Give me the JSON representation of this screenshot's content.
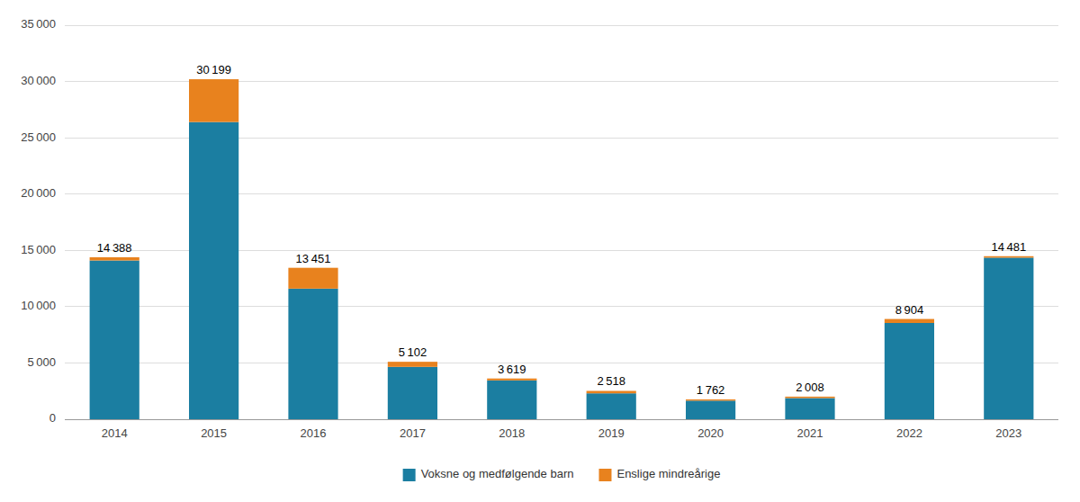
{
  "chart_data": {
    "type": "bar",
    "stacked": true,
    "categories": [
      "2014",
      "2015",
      "2016",
      "2017",
      "2018",
      "2019",
      "2020",
      "2021",
      "2022",
      "2023"
    ],
    "series": [
      {
        "name": "Voksne og medfølgende barn",
        "color": "#1b7ea1",
        "values": [
          14100,
          26400,
          11600,
          4650,
          3450,
          2300,
          1650,
          1880,
          8550,
          14350
        ]
      },
      {
        "name": "Enslige mindreårige",
        "color": "#e8821e",
        "values": [
          288,
          3799,
          1851,
          452,
          169,
          218,
          112,
          128,
          354,
          131
        ]
      }
    ],
    "totals": [
      14388,
      30199,
      13451,
      5102,
      3619,
      2518,
      1762,
      2008,
      8904,
      14481
    ],
    "total_labels": [
      "14 388",
      "30 199",
      "13 451",
      "5 102",
      "3 619",
      "2 518",
      "1 762",
      "2 008",
      "8 904",
      "14 481"
    ],
    "ylim": [
      0,
      35000
    ],
    "yticks": [
      0,
      {
        "value": 5000,
        "label": "5 000"
      },
      {
        "value": 10000,
        "label": "10 000"
      },
      {
        "value": 15000,
        "label": "15 000"
      },
      {
        "value": 20000,
        "label": "20 000"
      },
      {
        "value": 25000,
        "label": "25 000"
      },
      {
        "value": 30000,
        "label": "30 000"
      },
      {
        "value": 35000,
        "label": "35 000"
      }
    ],
    "grid": true,
    "legend": "bottom"
  }
}
